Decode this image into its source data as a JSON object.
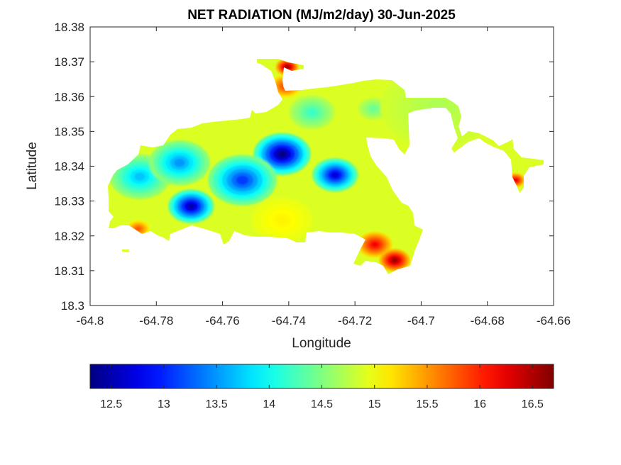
{
  "chart_data": {
    "type": "heatmap",
    "title": "NET RADIATION (MJ/m2/day) 30-Jun-2025",
    "xlabel": "Longitude",
    "ylabel": "Latitude",
    "xlim": [
      -64.8,
      -64.66
    ],
    "ylim": [
      18.3,
      18.38
    ],
    "x_ticks": [
      "-64.8",
      "-64.78",
      "-64.76",
      "-64.74",
      "-64.72",
      "-64.7",
      "-64.68",
      "-64.66"
    ],
    "y_ticks": [
      "18.3",
      "18.31",
      "18.32",
      "18.33",
      "18.34",
      "18.35",
      "18.36",
      "18.37",
      "18.38"
    ],
    "colorbar": {
      "colormap": "jet",
      "range": [
        12.3,
        16.7
      ],
      "ticks": [
        "12.5",
        "13",
        "13.5",
        "14",
        "14.5",
        "15",
        "15.5",
        "16",
        "16.5"
      ]
    },
    "legend": "colorbar-bottom",
    "grid": false,
    "approximate_field": {
      "background_value": 14.9,
      "features": [
        {
          "lon": -64.742,
          "lat": 18.3435,
          "value": 12.35,
          "radius_deg": 0.0075
        },
        {
          "lon": -64.7695,
          "lat": 18.3285,
          "value": 12.5,
          "radius_deg": 0.006
        },
        {
          "lon": -64.726,
          "lat": 18.3375,
          "value": 12.7,
          "radius_deg": 0.006
        },
        {
          "lon": -64.754,
          "lat": 18.336,
          "value": 13.1,
          "radius_deg": 0.009
        },
        {
          "lon": -64.785,
          "lat": 18.337,
          "value": 13.7,
          "radius_deg": 0.008
        },
        {
          "lon": -64.773,
          "lat": 18.341,
          "value": 13.5,
          "radius_deg": 0.008
        },
        {
          "lon": -64.733,
          "lat": 18.3555,
          "value": 14.2,
          "radius_deg": 0.006
        },
        {
          "lon": -64.7145,
          "lat": 18.3565,
          "value": 14.4,
          "radius_deg": 0.004
        },
        {
          "lon": -64.714,
          "lat": 18.3175,
          "value": 16.2,
          "radius_deg": 0.0045
        },
        {
          "lon": -64.708,
          "lat": 18.313,
          "value": 16.6,
          "radius_deg": 0.004
        },
        {
          "lon": -64.741,
          "lat": 18.363,
          "value": 15.9,
          "radius_deg": 0.004
        },
        {
          "lon": -64.7405,
          "lat": 18.3685,
          "value": 16.6,
          "radius_deg": 0.003
        },
        {
          "lon": -64.6715,
          "lat": 18.336,
          "value": 16.3,
          "radius_deg": 0.0025
        },
        {
          "lon": -64.7855,
          "lat": 18.322,
          "value": 15.8,
          "radius_deg": 0.003
        },
        {
          "lon": -64.695,
          "lat": 18.357,
          "value": 14.7,
          "radius_deg": 0.015
        },
        {
          "lon": -64.742,
          "lat": 18.3245,
          "value": 15.1,
          "radius_deg": 0.008
        }
      ]
    }
  }
}
